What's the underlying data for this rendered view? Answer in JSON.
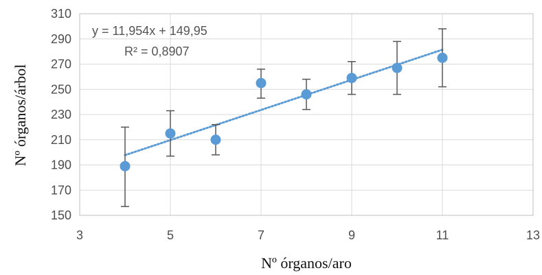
{
  "chart_data": {
    "type": "scatter",
    "xlabel": "Nº órganos/aro",
    "ylabel": "Nº órganos/árbol",
    "xlim": [
      3,
      13
    ],
    "ylim": [
      150,
      310
    ],
    "x_ticks": [
      3,
      5,
      7,
      9,
      11,
      13
    ],
    "y_ticks": [
      150,
      170,
      190,
      210,
      230,
      250,
      270,
      290,
      310
    ],
    "grid": true,
    "legend": "none",
    "series": [
      {
        "x": [
          4,
          5,
          6,
          7,
          8,
          9,
          10,
          11
        ],
        "values": [
          189,
          215,
          210,
          255,
          246,
          259,
          267,
          275
        ],
        "error_low": [
          157,
          197,
          198,
          243,
          234,
          246,
          246,
          252
        ],
        "error_high": [
          220,
          233,
          222,
          266,
          258,
          272,
          288,
          298
        ]
      }
    ],
    "trendline": {
      "type": "linear",
      "slope": 11.954,
      "intercept": 149.95,
      "x_range": [
        4,
        11
      ],
      "equation": "y = 11,954x + 149,95",
      "r2": "R² = 0,8907"
    },
    "colors": {
      "marker": "#5b9bd5",
      "trendline": "#5b9bd5",
      "error_bars": "#555555",
      "grid": "#d9d9d9",
      "axis": "#bfbfbf"
    }
  }
}
